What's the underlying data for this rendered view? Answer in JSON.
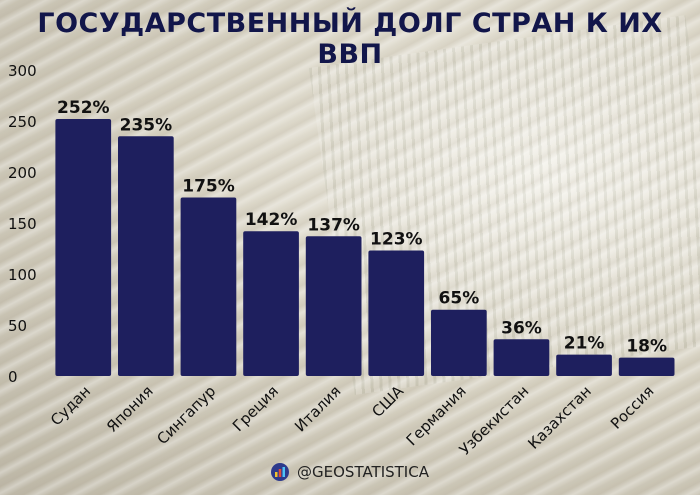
{
  "title": "ГОСУДАРСТВЕННЫЙ ДОЛГ СТРАН К ИХ ВВП",
  "footer": {
    "handle": "@GEOSTATISTICA",
    "icon": "bar-chart-logo-icon"
  },
  "colors": {
    "bar": "#1e1f5e",
    "title": "#12164a",
    "text": "#111111"
  },
  "chart_data": {
    "type": "bar",
    "title": "ГОСУДАРСТВЕННЫЙ ДОЛГ СТРАН К ИХ ВВП",
    "xlabel": "",
    "ylabel": "",
    "ylim": [
      0,
      300
    ],
    "yticks": [
      0,
      50,
      100,
      150,
      200,
      250,
      300
    ],
    "categories": [
      "Судан",
      "Япония",
      "Сингапур",
      "Греция",
      "Италия",
      "США",
      "Германия",
      "Узбекистан",
      "Казахстан",
      "Россия"
    ],
    "values": [
      252,
      235,
      175,
      142,
      137,
      123,
      65,
      36,
      21,
      18
    ],
    "data_labels": [
      "252%",
      "235%",
      "175%",
      "142%",
      "137%",
      "123%",
      "65%",
      "36%",
      "21%",
      "18%"
    ],
    "grid": false,
    "legend": "none"
  }
}
